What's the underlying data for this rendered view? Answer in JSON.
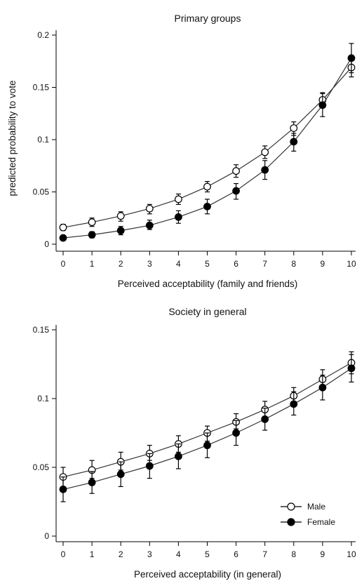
{
  "chart_data": [
    {
      "type": "line",
      "title": "Primary groups",
      "xlabel": "Perceived acceptability (family and friends)",
      "ylabel": "predicted probability to vote",
      "x": [
        0,
        1,
        2,
        3,
        4,
        5,
        6,
        7,
        8,
        9,
        10
      ],
      "xlim": [
        0,
        10
      ],
      "ylim": [
        0,
        0.2
      ],
      "xticks": [
        "0",
        "1",
        "2",
        "3",
        "4",
        "5",
        "6",
        "7",
        "8",
        "9",
        "10"
      ],
      "yticks": [
        0,
        0.05,
        0.1,
        0.15,
        0.2
      ],
      "ytick_labels": [
        "0",
        "0.05",
        "0.1",
        "0.15",
        "0.2"
      ],
      "grid": false,
      "series": [
        {
          "name": "Male",
          "marker": "open-circle",
          "values": [
            0.016,
            0.021,
            0.027,
            0.034,
            0.043,
            0.055,
            0.07,
            0.088,
            0.111,
            0.138,
            0.169
          ],
          "ci_low": [
            0.013,
            0.017,
            0.022,
            0.029,
            0.038,
            0.05,
            0.064,
            0.082,
            0.104,
            0.131,
            0.16
          ],
          "ci_high": [
            0.019,
            0.025,
            0.031,
            0.038,
            0.048,
            0.06,
            0.076,
            0.094,
            0.117,
            0.145,
            0.178
          ]
        },
        {
          "name": "Female",
          "marker": "filled-circle",
          "values": [
            0.006,
            0.009,
            0.013,
            0.018,
            0.026,
            0.036,
            0.051,
            0.071,
            0.098,
            0.133,
            0.178
          ],
          "ci_low": [
            0.004,
            0.006,
            0.009,
            0.014,
            0.02,
            0.029,
            0.043,
            0.062,
            0.089,
            0.122,
            0.164
          ],
          "ci_high": [
            0.008,
            0.012,
            0.017,
            0.023,
            0.032,
            0.043,
            0.058,
            0.08,
            0.106,
            0.144,
            0.192
          ]
        }
      ]
    },
    {
      "type": "line",
      "title": "Society in general",
      "xlabel": "Perceived acceptability (in general)",
      "ylabel": "",
      "x": [
        0,
        1,
        2,
        3,
        4,
        5,
        6,
        7,
        8,
        9,
        10
      ],
      "xlim": [
        0,
        10
      ],
      "ylim": [
        0,
        0.15
      ],
      "xticks": [
        "0",
        "1",
        "2",
        "3",
        "4",
        "5",
        "6",
        "7",
        "8",
        "9",
        "10"
      ],
      "yticks": [
        0,
        0.05,
        0.1,
        0.15
      ],
      "ytick_labels": [
        "0",
        "0.05",
        "0.1",
        "0.15"
      ],
      "grid": false,
      "legend": {
        "position": "bottom-right",
        "entries": [
          {
            "name": "Male",
            "marker": "open-circle"
          },
          {
            "name": "Female",
            "marker": "filled-circle"
          }
        ]
      },
      "series": [
        {
          "name": "Male",
          "marker": "open-circle",
          "values": [
            0.043,
            0.048,
            0.054,
            0.06,
            0.067,
            0.075,
            0.083,
            0.092,
            0.102,
            0.114,
            0.126
          ],
          "ci_low": [
            0.036,
            0.042,
            0.048,
            0.055,
            0.061,
            0.069,
            0.078,
            0.087,
            0.096,
            0.107,
            0.118
          ],
          "ci_high": [
            0.05,
            0.055,
            0.061,
            0.066,
            0.073,
            0.08,
            0.089,
            0.098,
            0.108,
            0.121,
            0.134
          ]
        },
        {
          "name": "Female",
          "marker": "filled-circle",
          "values": [
            0.034,
            0.039,
            0.045,
            0.051,
            0.058,
            0.066,
            0.075,
            0.085,
            0.096,
            0.108,
            0.122
          ],
          "ci_low": [
            0.025,
            0.031,
            0.036,
            0.042,
            0.049,
            0.057,
            0.066,
            0.077,
            0.088,
            0.099,
            0.112
          ],
          "ci_high": [
            0.043,
            0.047,
            0.054,
            0.06,
            0.067,
            0.075,
            0.084,
            0.093,
            0.105,
            0.117,
            0.132
          ]
        }
      ]
    }
  ]
}
